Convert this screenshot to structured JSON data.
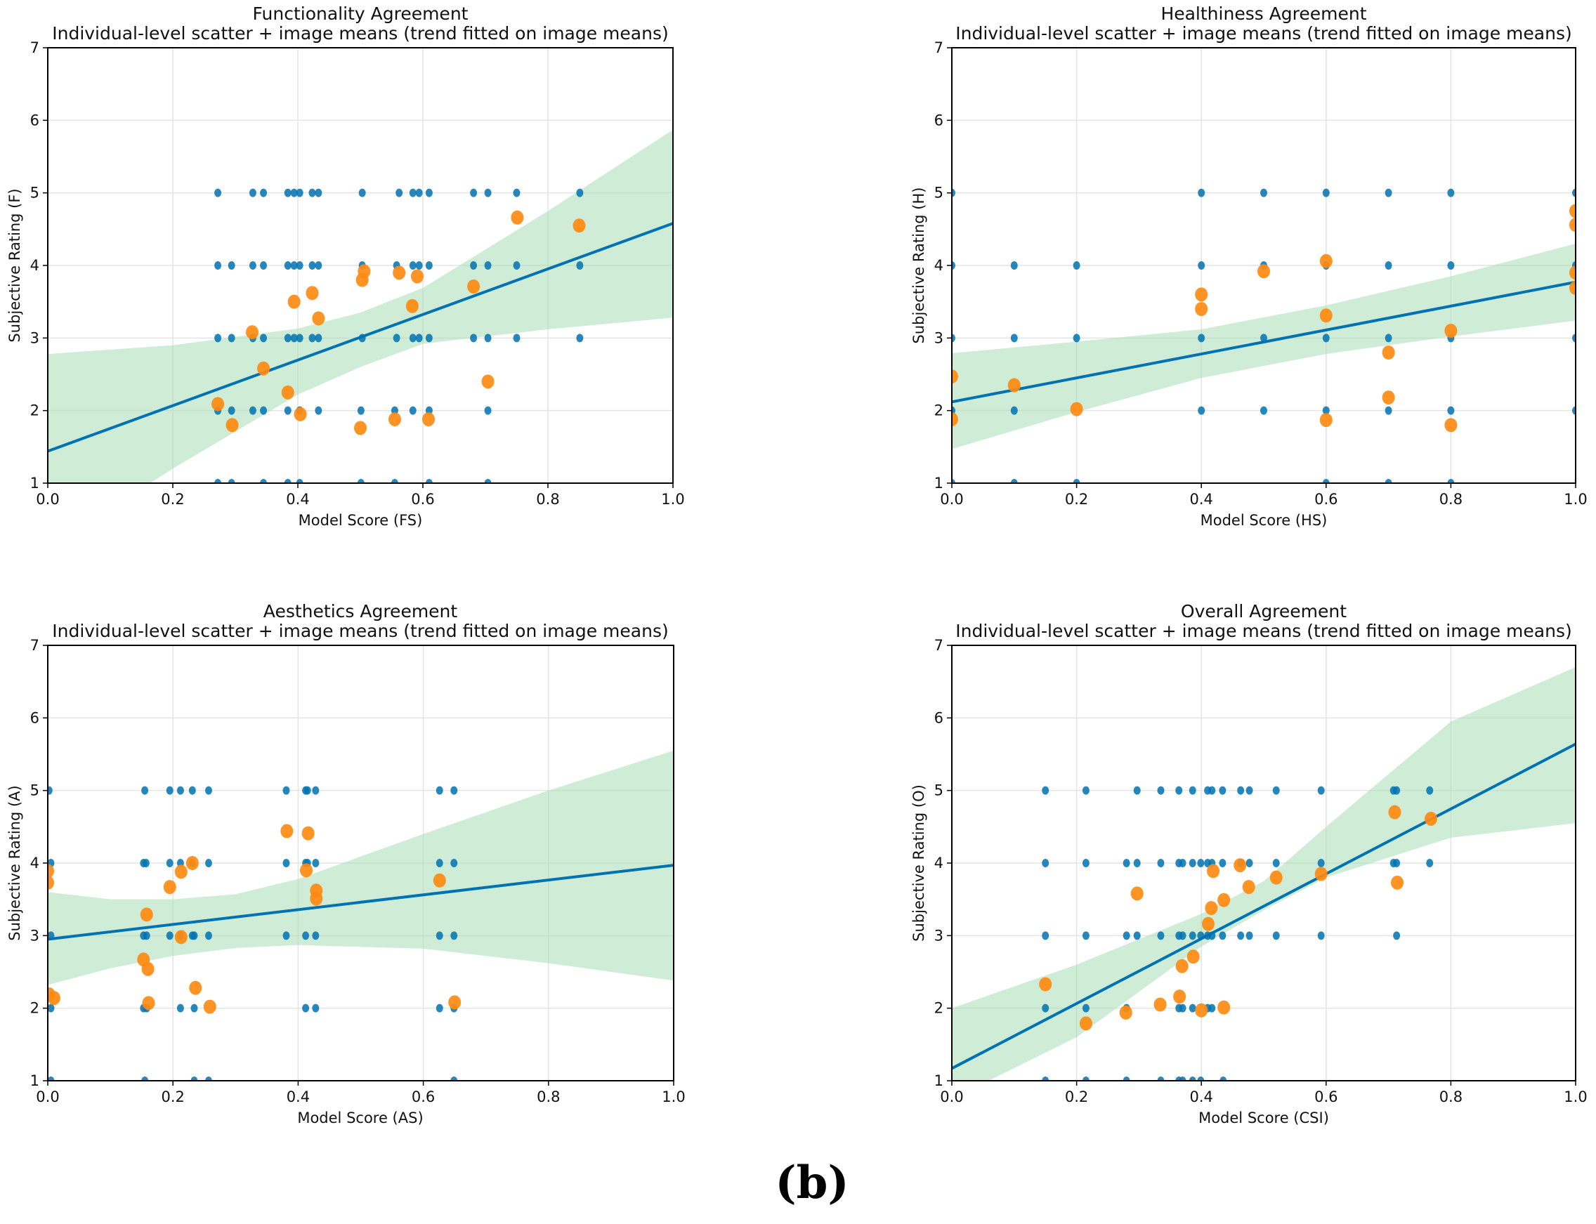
{
  "figure_label": "(b)",
  "colors": {
    "individual": "#0072B2",
    "mean": "#FF8A10",
    "trend": "#0072B2",
    "band": "#A8DDB5",
    "grid": "#e4e4e4"
  },
  "chart_data": [
    {
      "type": "scatter",
      "title": "Functionality Agreement",
      "subtitle": "Individual-level scatter + image means (trend fitted on image means)",
      "xlabel": "Model Score (FS)",
      "ylabel": "Subjective Rating (F)",
      "xlim": [
        0,
        1
      ],
      "ylim": [
        1,
        7
      ],
      "xticks": [
        "0.0",
        "0.2",
        "0.4",
        "0.6",
        "0.8",
        "1.0"
      ],
      "yticks": [
        "1",
        "2",
        "3",
        "4",
        "5",
        "6",
        "7"
      ],
      "grid": true,
      "individual": [
        {
          "y": 5,
          "x": [
            0.272,
            0.328,
            0.345,
            0.384,
            0.394,
            0.403,
            0.423,
            0.433,
            0.503,
            0.562,
            0.584,
            0.594,
            0.61,
            0.681,
            0.704,
            0.75,
            0.851
          ]
        },
        {
          "y": 4,
          "x": [
            0.272,
            0.294,
            0.328,
            0.345,
            0.384,
            0.394,
            0.403,
            0.423,
            0.433,
            0.503,
            0.558,
            0.584,
            0.594,
            0.61,
            0.681,
            0.704,
            0.75,
            0.851
          ]
        },
        {
          "y": 3,
          "x": [
            0.272,
            0.294,
            0.328,
            0.345,
            0.384,
            0.394,
            0.403,
            0.423,
            0.433,
            0.503,
            0.558,
            0.584,
            0.594,
            0.61,
            0.681,
            0.704,
            0.75,
            0.851
          ]
        },
        {
          "y": 2,
          "x": [
            0.272,
            0.294,
            0.328,
            0.345,
            0.384,
            0.403,
            0.433,
            0.501,
            0.555,
            0.584,
            0.61,
            0.704
          ]
        },
        {
          "y": 1,
          "x": [
            0.272,
            0.294,
            0.345,
            0.384,
            0.403,
            0.501,
            0.555,
            0.61,
            0.704
          ]
        }
      ],
      "image_means": [
        [
          0.272,
          2.09
        ],
        [
          0.295,
          1.8
        ],
        [
          0.327,
          3.08
        ],
        [
          0.345,
          2.58
        ],
        [
          0.384,
          2.25
        ],
        [
          0.394,
          3.5
        ],
        [
          0.404,
          1.95
        ],
        [
          0.423,
          3.62
        ],
        [
          0.433,
          3.27
        ],
        [
          0.5,
          1.76
        ],
        [
          0.503,
          3.8
        ],
        [
          0.506,
          3.92
        ],
        [
          0.555,
          1.88
        ],
        [
          0.562,
          3.9
        ],
        [
          0.583,
          3.44
        ],
        [
          0.591,
          3.85
        ],
        [
          0.609,
          1.88
        ],
        [
          0.681,
          3.71
        ],
        [
          0.704,
          2.4
        ],
        [
          0.751,
          4.66
        ],
        [
          0.85,
          4.55
        ]
      ],
      "trend": {
        "intercept": 1.44,
        "slope": 3.14
      },
      "ci_band": {
        "x": [
          0,
          0.2,
          0.4,
          0.5,
          0.6,
          0.8,
          1.0
        ],
        "lower": [
          0.1,
          1.2,
          2.22,
          2.6,
          2.92,
          3.12,
          3.28
        ],
        "upper": [
          2.78,
          2.9,
          3.13,
          3.35,
          3.69,
          4.75,
          5.87
        ]
      }
    },
    {
      "type": "scatter",
      "title": "Healthiness Agreement",
      "subtitle": "Individual-level scatter + image means (trend fitted on image means)",
      "xlabel": "Model Score (HS)",
      "ylabel": "Subjective Rating (H)",
      "xlim": [
        0,
        1
      ],
      "ylim": [
        1,
        7
      ],
      "xticks": [
        "0.0",
        "0.2",
        "0.4",
        "0.6",
        "0.8",
        "1.0"
      ],
      "yticks": [
        "1",
        "2",
        "3",
        "4",
        "5",
        "6",
        "7"
      ],
      "grid": true,
      "individual": [
        {
          "y": 5,
          "x": [
            0,
            0.4,
            0.5,
            0.6,
            0.7,
            0.8,
            1.0
          ]
        },
        {
          "y": 4,
          "x": [
            0,
            0.1,
            0.2,
            0.4,
            0.5,
            0.6,
            0.7,
            0.8,
            1.0
          ]
        },
        {
          "y": 3,
          "x": [
            0,
            0.1,
            0.2,
            0.4,
            0.5,
            0.6,
            0.7,
            0.8,
            1.0
          ]
        },
        {
          "y": 2,
          "x": [
            0,
            0.1,
            0.4,
            0.5,
            0.6,
            0.7,
            0.8,
            1.0
          ]
        },
        {
          "y": 1,
          "x": [
            0,
            0.1,
            0.2,
            0.6,
            0.7,
            0.8
          ]
        }
      ],
      "image_means": [
        [
          0,
          2.47
        ],
        [
          0,
          1.88
        ],
        [
          0.1,
          2.35
        ],
        [
          0.2,
          2.02
        ],
        [
          0.4,
          3.6
        ],
        [
          0.4,
          3.4
        ],
        [
          0.5,
          3.92
        ],
        [
          0.6,
          4.06
        ],
        [
          0.6,
          3.31
        ],
        [
          0.6,
          1.87
        ],
        [
          0.7,
          2.8
        ],
        [
          0.7,
          2.18
        ],
        [
          0.8,
          3.1
        ],
        [
          0.8,
          1.8
        ],
        [
          1.0,
          4.75
        ],
        [
          1.0,
          4.56
        ],
        [
          1.0,
          3.9
        ],
        [
          1.0,
          3.69
        ]
      ],
      "trend": {
        "intercept": 2.12,
        "slope": 1.65
      },
      "ci_band": {
        "x": [
          0,
          0.2,
          0.4,
          0.6,
          0.8,
          1.0
        ],
        "lower": [
          1.47,
          1.98,
          2.45,
          2.78,
          3.02,
          3.24
        ],
        "upper": [
          2.79,
          2.95,
          3.12,
          3.45,
          3.85,
          4.3
        ]
      }
    },
    {
      "type": "scatter",
      "title": "Aesthetics Agreement",
      "subtitle": "Individual-level scatter + image means (trend fitted on image means)",
      "xlabel": "Model Score (AS)",
      "ylabel": "Subjective Rating (A)",
      "xlim": [
        0,
        1
      ],
      "ylim": [
        1,
        7
      ],
      "xticks": [
        "0.0",
        "0.2",
        "0.4",
        "0.6",
        "0.8",
        "1.0"
      ],
      "yticks": [
        "1",
        "2",
        "3",
        "4",
        "5",
        "6",
        "7"
      ],
      "grid": true,
      "individual": [
        {
          "y": 5,
          "x": [
            0.002,
            0.155,
            0.195,
            0.212,
            0.231,
            0.257,
            0.381,
            0.412,
            0.415,
            0.428,
            0.626,
            0.649
          ]
        },
        {
          "y": 4,
          "x": [
            0.005,
            0.153,
            0.157,
            0.195,
            0.212,
            0.231,
            0.257,
            0.381,
            0.412,
            0.415,
            0.428,
            0.626,
            0.649
          ]
        },
        {
          "y": 3,
          "x": [
            0.005,
            0.153,
            0.158,
            0.195,
            0.212,
            0.231,
            0.234,
            0.257,
            0.381,
            0.412,
            0.428,
            0.626,
            0.649
          ]
        },
        {
          "y": 2,
          "x": [
            0.005,
            0.153,
            0.158,
            0.212,
            0.234,
            0.412,
            0.428,
            0.626,
            0.649
          ]
        },
        {
          "y": 1,
          "x": [
            0.005,
            0.155,
            0.234,
            0.257,
            0.649
          ]
        }
      ],
      "image_means": [
        [
          0,
          3.89
        ],
        [
          0,
          3.73
        ],
        [
          0.002,
          2.19
        ],
        [
          0.01,
          2.14
        ],
        [
          0.153,
          2.67
        ],
        [
          0.158,
          3.29
        ],
        [
          0.16,
          2.54
        ],
        [
          0.161,
          2.07
        ],
        [
          0.195,
          3.67
        ],
        [
          0.213,
          3.88
        ],
        [
          0.213,
          2.98
        ],
        [
          0.231,
          4.0
        ],
        [
          0.236,
          2.28
        ],
        [
          0.259,
          2.02
        ],
        [
          0.382,
          4.44
        ],
        [
          0.416,
          4.41
        ],
        [
          0.413,
          3.9
        ],
        [
          0.429,
          3.62
        ],
        [
          0.429,
          3.51
        ],
        [
          0.626,
          3.76
        ],
        [
          0.65,
          2.08
        ]
      ],
      "trend": {
        "intercept": 2.95,
        "slope": 1.02
      },
      "ci_band": {
        "x": [
          0,
          0.1,
          0.2,
          0.3,
          0.4,
          0.6,
          0.8,
          1.0
        ],
        "lower": [
          2.32,
          2.55,
          2.72,
          2.83,
          2.87,
          2.82,
          2.62,
          2.38
        ],
        "upper": [
          3.6,
          3.5,
          3.5,
          3.57,
          3.78,
          4.4,
          5.0,
          5.55
        ]
      }
    },
    {
      "type": "scatter",
      "title": "Overall Agreement",
      "subtitle": "Individual-level scatter + image means (trend fitted on image means)",
      "xlabel": "Model Score (CSI)",
      "ylabel": "Subjective Rating (O)",
      "xlim": [
        0,
        1
      ],
      "ylim": [
        1,
        7
      ],
      "xticks": [
        "0.0",
        "0.2",
        "0.4",
        "0.6",
        "0.8",
        "1.0"
      ],
      "yticks": [
        "1",
        "2",
        "3",
        "4",
        "5",
        "6",
        "7"
      ],
      "grid": true,
      "individual": [
        {
          "y": 5,
          "x": [
            0.15,
            0.215,
            0.297,
            0.335,
            0.364,
            0.386,
            0.41,
            0.417,
            0.434,
            0.463,
            0.477,
            0.52,
            0.592,
            0.708,
            0.713,
            0.766
          ]
        },
        {
          "y": 4,
          "x": [
            0.15,
            0.215,
            0.28,
            0.297,
            0.335,
            0.364,
            0.37,
            0.386,
            0.399,
            0.41,
            0.417,
            0.434,
            0.463,
            0.477,
            0.52,
            0.592,
            0.708,
            0.713,
            0.766
          ]
        },
        {
          "y": 3,
          "x": [
            0.15,
            0.215,
            0.28,
            0.297,
            0.335,
            0.364,
            0.37,
            0.386,
            0.399,
            0.41,
            0.417,
            0.434,
            0.463,
            0.477,
            0.52,
            0.592,
            0.713
          ]
        },
        {
          "y": 2,
          "x": [
            0.15,
            0.215,
            0.28,
            0.364,
            0.37,
            0.386,
            0.41,
            0.417
          ]
        },
        {
          "y": 1,
          "x": [
            0.15,
            0.215,
            0.28,
            0.335,
            0.364,
            0.37,
            0.386,
            0.399,
            0.435
          ]
        }
      ],
      "image_means": [
        [
          0.15,
          2.33
        ],
        [
          0.215,
          1.79
        ],
        [
          0.279,
          1.94
        ],
        [
          0.297,
          3.58
        ],
        [
          0.334,
          2.05
        ],
        [
          0.365,
          2.16
        ],
        [
          0.369,
          2.58
        ],
        [
          0.387,
          2.71
        ],
        [
          0.4,
          1.97
        ],
        [
          0.411,
          3.16
        ],
        [
          0.416,
          3.38
        ],
        [
          0.419,
          3.89
        ],
        [
          0.436,
          3.49
        ],
        [
          0.436,
          2.01
        ],
        [
          0.462,
          3.97
        ],
        [
          0.476,
          3.67
        ],
        [
          0.52,
          3.8
        ],
        [
          0.592,
          3.85
        ],
        [
          0.71,
          4.7
        ],
        [
          0.714,
          3.73
        ],
        [
          0.768,
          4.61
        ]
      ],
      "trend": {
        "intercept": 1.17,
        "slope": 4.47
      },
      "ci_band": {
        "x": [
          0,
          0.2,
          0.4,
          0.5,
          0.6,
          0.8,
          1.0
        ],
        "lower": [
          0.75,
          1.6,
          2.85,
          3.35,
          3.8,
          4.35,
          4.55
        ],
        "upper": [
          2.0,
          2.6,
          3.3,
          3.75,
          4.5,
          5.95,
          6.7
        ]
      }
    }
  ]
}
